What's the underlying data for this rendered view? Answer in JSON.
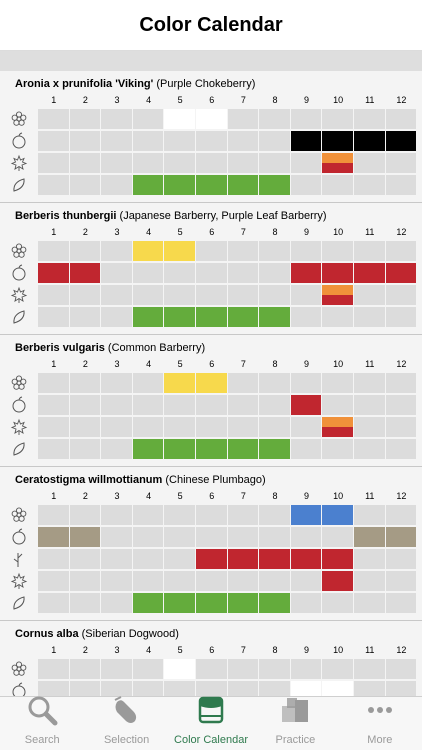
{
  "header": {
    "title": "Color Calendar"
  },
  "months": [
    "1",
    "2",
    "3",
    "4",
    "5",
    "6",
    "7",
    "8",
    "9",
    "10",
    "11",
    "12"
  ],
  "colors": {
    "empty": "#dcdcdc",
    "white": "#ffffff",
    "black": "#000000",
    "orange": "#f0913a",
    "red": "#c0262f",
    "green": "#64ac3c",
    "yellow": "#f7d94c",
    "blue": "#4b80cf",
    "taupe": "#a59b85"
  },
  "plants": [
    {
      "latin": "Aronia x prunifolia 'Viking'",
      "common": " (Purple Chokeberry)",
      "rows": [
        {
          "icon": "flower-icon",
          "cells": [
            "",
            "",
            "",
            "",
            "white",
            "white",
            "",
            "",
            "",
            "",
            "",
            ""
          ]
        },
        {
          "icon": "fruit-icon",
          "cells": [
            "",
            "",
            "",
            "",
            "",
            "",
            "",
            "",
            "black",
            "black",
            "black",
            "black"
          ]
        },
        {
          "icon": "autumn-leaf-icon",
          "cells": [
            "",
            "",
            "",
            "",
            "",
            "",
            "",
            "",
            "",
            "orange/red",
            "",
            ""
          ]
        },
        {
          "icon": "leaf-icon",
          "cells": [
            "",
            "",
            "",
            "green",
            "green",
            "green",
            "green",
            "green",
            "",
            "",
            "",
            ""
          ]
        }
      ]
    },
    {
      "latin": "Berberis thunbergii",
      "common": " (Japanese Barberry, Purple Leaf Barberry)",
      "rows": [
        {
          "icon": "flower-icon",
          "cells": [
            "",
            "",
            "",
            "yellow",
            "yellow",
            "",
            "",
            "",
            "",
            "",
            "",
            ""
          ]
        },
        {
          "icon": "fruit-icon",
          "cells": [
            "red",
            "red",
            "",
            "",
            "",
            "",
            "",
            "",
            "red",
            "red",
            "red",
            "red"
          ]
        },
        {
          "icon": "autumn-leaf-icon",
          "cells": [
            "",
            "",
            "",
            "",
            "",
            "",
            "",
            "",
            "",
            "orange/red",
            "",
            ""
          ]
        },
        {
          "icon": "leaf-icon",
          "cells": [
            "",
            "",
            "",
            "green",
            "green",
            "green",
            "green",
            "green",
            "",
            "",
            "",
            ""
          ]
        }
      ]
    },
    {
      "latin": "Berberis vulgaris",
      "common": " (Common Barberry)",
      "rows": [
        {
          "icon": "flower-icon",
          "cells": [
            "",
            "",
            "",
            "",
            "yellow",
            "yellow",
            "",
            "",
            "",
            "",
            "",
            ""
          ]
        },
        {
          "icon": "fruit-icon",
          "cells": [
            "",
            "",
            "",
            "",
            "",
            "",
            "",
            "",
            "red",
            "",
            "",
            ""
          ]
        },
        {
          "icon": "autumn-leaf-icon",
          "cells": [
            "",
            "",
            "",
            "",
            "",
            "",
            "",
            "",
            "",
            "orange/red",
            "",
            ""
          ]
        },
        {
          "icon": "leaf-icon",
          "cells": [
            "",
            "",
            "",
            "green",
            "green",
            "green",
            "green",
            "green",
            "",
            "",
            "",
            ""
          ]
        }
      ]
    },
    {
      "latin": "Ceratostigma willmottianum",
      "common": " (Chinese Plumbago)",
      "rows": [
        {
          "icon": "flower-icon",
          "cells": [
            "",
            "",
            "",
            "",
            "",
            "",
            "",
            "",
            "blue",
            "blue",
            "",
            ""
          ]
        },
        {
          "icon": "fruit-icon",
          "cells": [
            "taupe",
            "taupe",
            "",
            "",
            "",
            "",
            "",
            "",
            "",
            "",
            "taupe",
            "taupe"
          ]
        },
        {
          "icon": "stem-icon",
          "cells": [
            "",
            "",
            "",
            "",
            "",
            "red",
            "red",
            "red",
            "red",
            "red",
            "",
            ""
          ]
        },
        {
          "icon": "autumn-leaf-icon",
          "cells": [
            "",
            "",
            "",
            "",
            "",
            "",
            "",
            "",
            "",
            "red",
            "",
            ""
          ]
        },
        {
          "icon": "leaf-icon",
          "cells": [
            "",
            "",
            "",
            "green",
            "green",
            "green",
            "green",
            "green",
            "",
            "",
            "",
            ""
          ]
        }
      ]
    },
    {
      "latin": "Cornus alba",
      "common": " (Siberian Dogwood)",
      "rows": [
        {
          "icon": "flower-icon",
          "cells": [
            "",
            "",
            "",
            "",
            "white",
            "",
            "",
            "",
            "",
            "",
            "",
            ""
          ]
        },
        {
          "icon": "fruit-icon",
          "cells": [
            "",
            "",
            "",
            "",
            "",
            "",
            "",
            "",
            "white",
            "white",
            "",
            ""
          ]
        },
        {
          "icon": "stem-icon",
          "cells": [
            "red",
            "red",
            "red",
            "red",
            "",
            "",
            "",
            "",
            "",
            "",
            "red",
            "red"
          ]
        },
        {
          "icon": "autumn-leaf-icon",
          "cells": [
            "",
            "",
            "",
            "",
            "",
            "",
            "",
            "",
            "",
            "red",
            "",
            ""
          ]
        }
      ]
    }
  ],
  "tabs": [
    {
      "label": "Search",
      "icon": "search-icon",
      "active": false
    },
    {
      "label": "Selection",
      "icon": "hand-icon",
      "active": false
    },
    {
      "label": "Color Calendar",
      "icon": "calendar-icon",
      "active": true
    },
    {
      "label": "Practice",
      "icon": "cubes-icon",
      "active": false
    },
    {
      "label": "More",
      "icon": "more-icon",
      "active": false
    }
  ]
}
